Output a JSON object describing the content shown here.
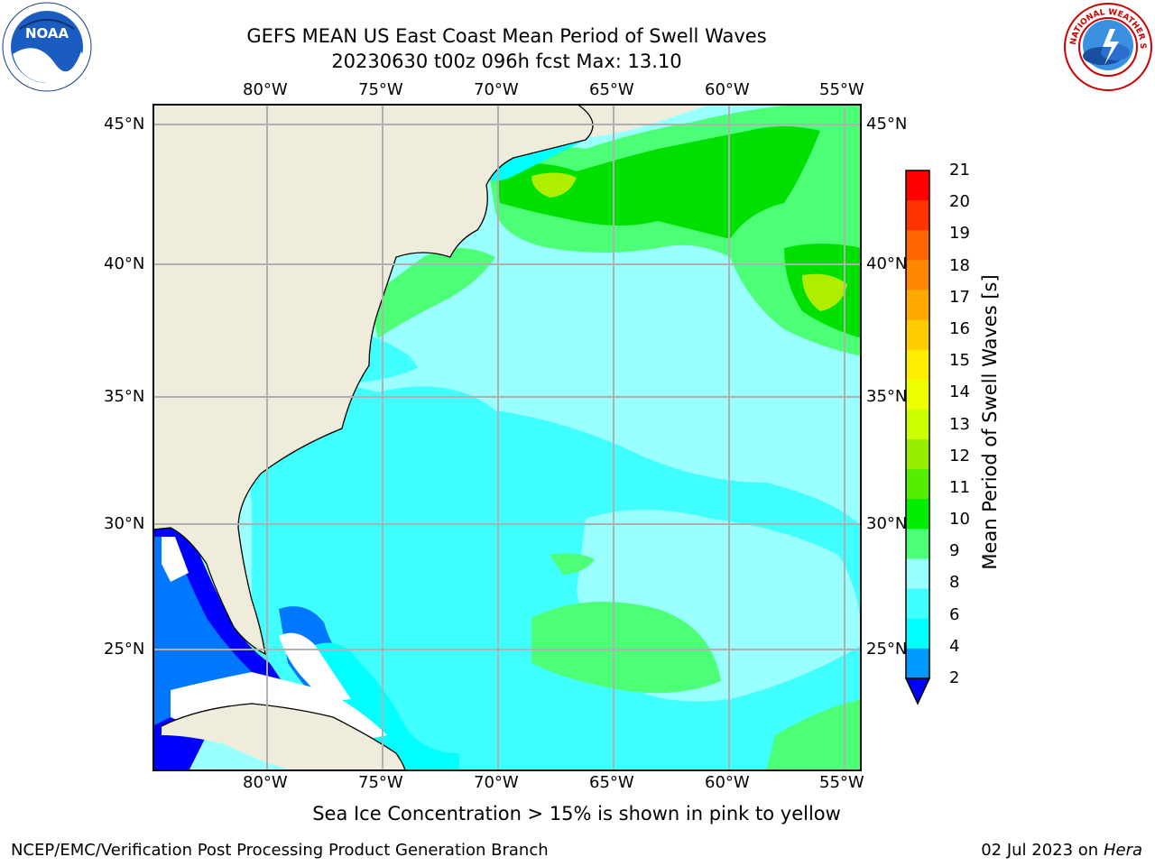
{
  "header": {
    "title_line1": "GEFS MEAN US East Coast Mean Period of Swell Waves",
    "title_line2": "20230630 t00z 096h fcst   Max: 13.10"
  },
  "logos": {
    "left": {
      "name": "noaa-logo",
      "text": "NOAA"
    },
    "right": {
      "name": "nws-logo",
      "text": "NATIONAL WEATHER SERVICE"
    }
  },
  "map": {
    "lon_labels": [
      "80°W",
      "75°W",
      "70°W",
      "65°W",
      "60°W",
      "55°W"
    ],
    "lat_labels": [
      "45°N",
      "40°N",
      "35°N",
      "30°N",
      "25°N"
    ],
    "colors": {
      "land": "#efecdc",
      "ocean_main": "#99ffff",
      "ocean_light": "#40ffff",
      "swell_green": "#4dff77",
      "swell_bright": "#00e000",
      "coast_deep": "#0000ff",
      "coast_mid": "#0077ff",
      "grid": "#b0b0b0"
    }
  },
  "colorbar": {
    "label": "Mean Period of Swell Waves [s]",
    "ticks": [
      "21",
      "20",
      "19",
      "18",
      "17",
      "16",
      "15",
      "14",
      "13",
      "12",
      "11",
      "10",
      "9",
      "8",
      "6",
      "4",
      "2"
    ],
    "colors_top_to_bottom": [
      "#ff0000",
      "#ff3300",
      "#ff6600",
      "#ff8800",
      "#ffaa00",
      "#ffcc00",
      "#ffee00",
      "#eeff00",
      "#ccff00",
      "#99ee00",
      "#55ee00",
      "#00ee00",
      "#4dff77",
      "#99ffff",
      "#40ffff",
      "#00ffff",
      "#0099ff",
      "#0000ff"
    ]
  },
  "caption": "Sea Ice Concentration > 15% is shown in pink to yellow",
  "footer": {
    "left": "NCEP/EMC/Verification Post Processing Product Generation Branch",
    "right_date": "02 Jul 2023 on ",
    "right_machine": "Hera"
  }
}
